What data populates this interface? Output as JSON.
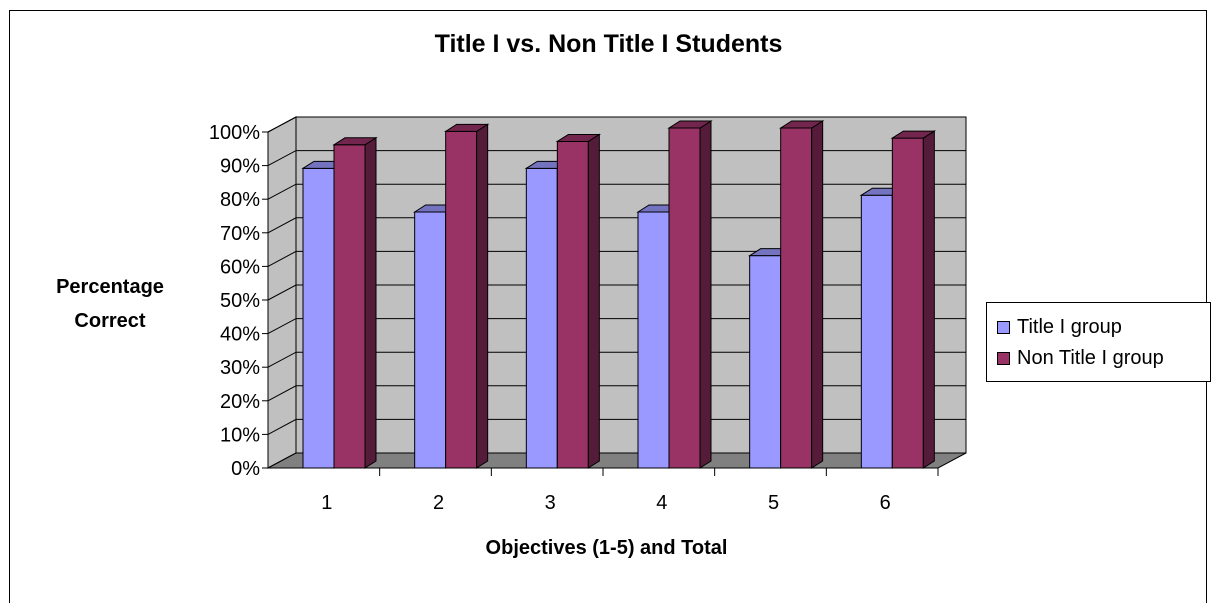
{
  "chart_data": {
    "type": "bar",
    "title": "Title I vs. Non Title I Students",
    "xlabel": "Objectives (1-5) and Total",
    "ylabel": [
      "Percentage",
      "Correct"
    ],
    "categories": [
      "1",
      "2",
      "3",
      "4",
      "5",
      "6"
    ],
    "series": [
      {
        "name": "Title I group",
        "values": [
          88,
          75,
          88,
          75,
          62,
          80
        ],
        "color": "#9999FF"
      },
      {
        "name": "Non Title I group",
        "values": [
          95,
          99,
          96,
          100,
          100,
          97
        ],
        "color": "#993366"
      }
    ],
    "ylim": [
      0,
      100
    ],
    "yticks": [
      "0%",
      "10%",
      "20%",
      "30%",
      "40%",
      "50%",
      "60%",
      "70%",
      "80%",
      "90%",
      "100%"
    ],
    "grid": true,
    "legend_position": "right",
    "three_d": true,
    "wall_color": "#C0C0C0",
    "floor_color": "#808080"
  }
}
